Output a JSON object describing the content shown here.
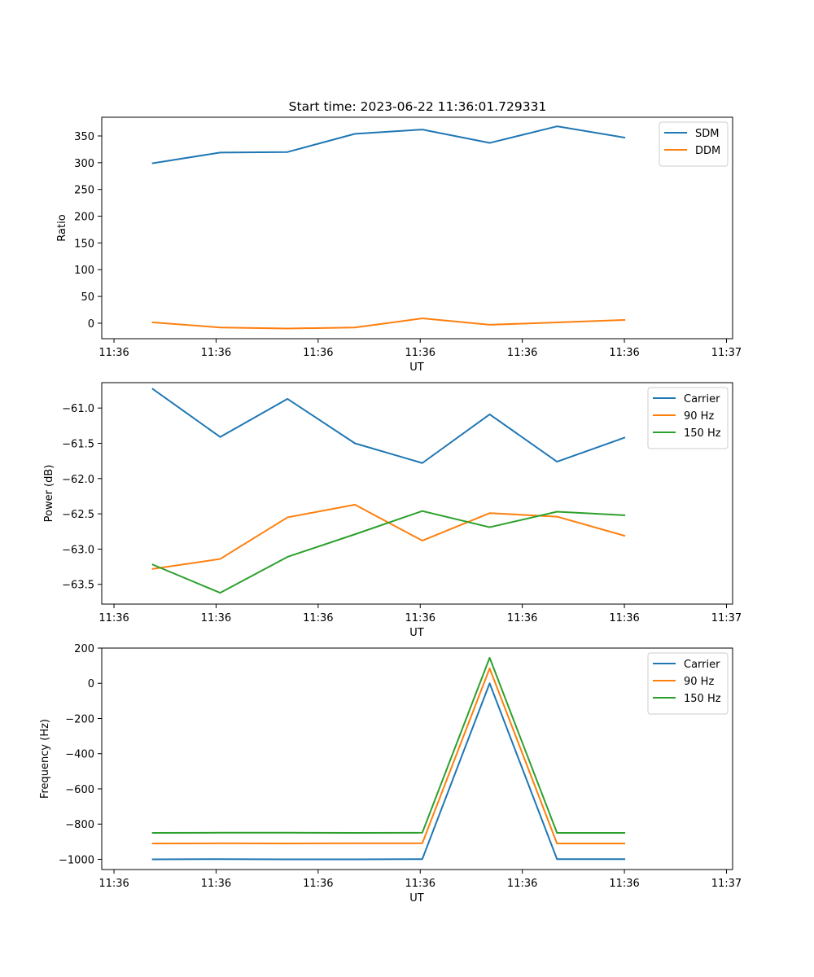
{
  "title": "Start time: 2023-06-22 11:36:01.729331",
  "chart_data": [
    {
      "type": "line",
      "xlabel": "UT",
      "ylabel": "Ratio",
      "x_tick_labels": [
        "11:36",
        "11:36",
        "11:36",
        "11:36",
        "11:36",
        "11:36",
        "11:37"
      ],
      "yticks": [
        0,
        50,
        100,
        150,
        200,
        250,
        300,
        350
      ],
      "ylim": [
        -29,
        385
      ],
      "grid": false,
      "legend_position": "top-right",
      "x": [
        0.5,
        1.16,
        1.82,
        2.48,
        3.14,
        3.8,
        4.46,
        5.12
      ],
      "series": [
        {
          "name": "SDM",
          "color": "#1f77b4",
          "values": [
            299,
            319,
            320,
            354,
            362,
            337,
            368,
            347
          ]
        },
        {
          "name": "DDM",
          "color": "#ff7f0e",
          "values": [
            1.5,
            -8,
            -10,
            -8,
            9,
            -3,
            1.5,
            6
          ]
        }
      ]
    },
    {
      "type": "line",
      "xlabel": "UT",
      "ylabel": "Power (dB)",
      "x_tick_labels": [
        "11:36",
        "11:36",
        "11:36",
        "11:36",
        "11:36",
        "11:36",
        "11:37"
      ],
      "yticks": [
        -63.5,
        -63.0,
        -62.5,
        -62.0,
        -61.5,
        -61.0
      ],
      "ytick_labels": [
        "−63.5",
        "−63.0",
        "−62.5",
        "−62.0",
        "−61.5",
        "−61.0"
      ],
      "ylim": [
        -63.78,
        -60.64
      ],
      "grid": false,
      "legend_position": "top-right",
      "x": [
        0.5,
        1.16,
        1.82,
        2.48,
        3.14,
        3.8,
        4.46,
        5.12
      ],
      "series": [
        {
          "name": "Carrier",
          "color": "#1f77b4",
          "values": [
            -60.73,
            -61.41,
            -60.87,
            -61.5,
            -61.78,
            -61.09,
            -61.76,
            -61.42
          ]
        },
        {
          "name": "90 Hz",
          "color": "#ff7f0e",
          "values": [
            -63.28,
            -63.14,
            -62.55,
            -62.37,
            -62.88,
            -62.49,
            -62.54,
            -62.81
          ]
        },
        {
          "name": "150 Hz",
          "color": "#2ca02c",
          "values": [
            -63.22,
            -63.62,
            -63.11,
            -62.79,
            -62.46,
            -62.69,
            -62.47,
            -62.52
          ]
        }
      ]
    },
    {
      "type": "line",
      "xlabel": "UT",
      "ylabel": "Frequency (Hz)",
      "x_tick_labels": [
        "11:36",
        "11:36",
        "11:36",
        "11:36",
        "11:36",
        "11:36",
        "11:37"
      ],
      "yticks": [
        -1000,
        -800,
        -600,
        -400,
        -200,
        0,
        200
      ],
      "ytick_labels": [
        "−1000",
        "−800",
        "−600",
        "−400",
        "−200",
        "0",
        "200"
      ],
      "ylim": [
        -1058,
        200
      ],
      "grid": false,
      "legend_position": "top-right",
      "x": [
        0.5,
        1.16,
        1.82,
        2.48,
        3.14,
        3.8,
        4.46,
        5.12
      ],
      "series": [
        {
          "name": "Carrier",
          "color": "#1f77b4",
          "values": [
            -1000,
            -999,
            -1000,
            -1000,
            -999,
            0,
            -999,
            -999
          ]
        },
        {
          "name": "90 Hz",
          "color": "#ff7f0e",
          "values": [
            -910,
            -909,
            -910,
            -909,
            -909,
            85,
            -910,
            -910
          ]
        },
        {
          "name": "150 Hz",
          "color": "#2ca02c",
          "values": [
            -850,
            -849,
            -849,
            -850,
            -849,
            145,
            -850,
            -850
          ]
        }
      ]
    }
  ]
}
